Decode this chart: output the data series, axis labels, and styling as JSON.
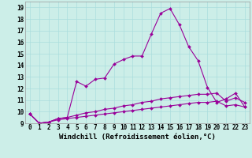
{
  "xlabel": "Windchill (Refroidissement éolien,°C)",
  "background_color": "#cceee8",
  "line_color": "#990099",
  "grid_color": "#aadddd",
  "x_values": [
    0,
    1,
    2,
    3,
    4,
    5,
    6,
    7,
    8,
    9,
    10,
    11,
    12,
    13,
    14,
    15,
    16,
    17,
    18,
    19,
    20,
    21,
    22,
    23
  ],
  "series1": [
    9.8,
    9.0,
    9.1,
    9.4,
    9.5,
    12.6,
    12.2,
    12.8,
    12.9,
    14.1,
    14.5,
    14.8,
    14.8,
    16.7,
    18.5,
    18.9,
    17.5,
    15.6,
    14.4,
    12.1,
    10.8,
    11.1,
    11.6,
    10.4
  ],
  "series2": [
    9.8,
    9.0,
    9.1,
    9.4,
    9.5,
    9.7,
    9.9,
    10.0,
    10.2,
    10.3,
    10.5,
    10.6,
    10.8,
    10.9,
    11.1,
    11.2,
    11.3,
    11.4,
    11.5,
    11.5,
    11.6,
    10.9,
    11.2,
    10.8
  ],
  "series3": [
    9.8,
    9.0,
    9.1,
    9.3,
    9.4,
    9.5,
    9.6,
    9.7,
    9.8,
    9.9,
    10.0,
    10.1,
    10.2,
    10.3,
    10.4,
    10.5,
    10.6,
    10.7,
    10.8,
    10.8,
    10.9,
    10.5,
    10.6,
    10.4
  ],
  "ylim": [
    9,
    19.5
  ],
  "xlim": [
    -0.5,
    23.5
  ],
  "yticks": [
    9,
    10,
    11,
    12,
    13,
    14,
    15,
    16,
    17,
    18,
    19
  ],
  "xticks": [
    0,
    1,
    2,
    3,
    4,
    5,
    6,
    7,
    8,
    9,
    10,
    11,
    12,
    13,
    14,
    15,
    16,
    17,
    18,
    19,
    20,
    21,
    22,
    23
  ],
  "tick_fontsize": 5.5,
  "xlabel_fontsize": 6.5,
  "markersize": 2.0,
  "linewidth": 0.8
}
